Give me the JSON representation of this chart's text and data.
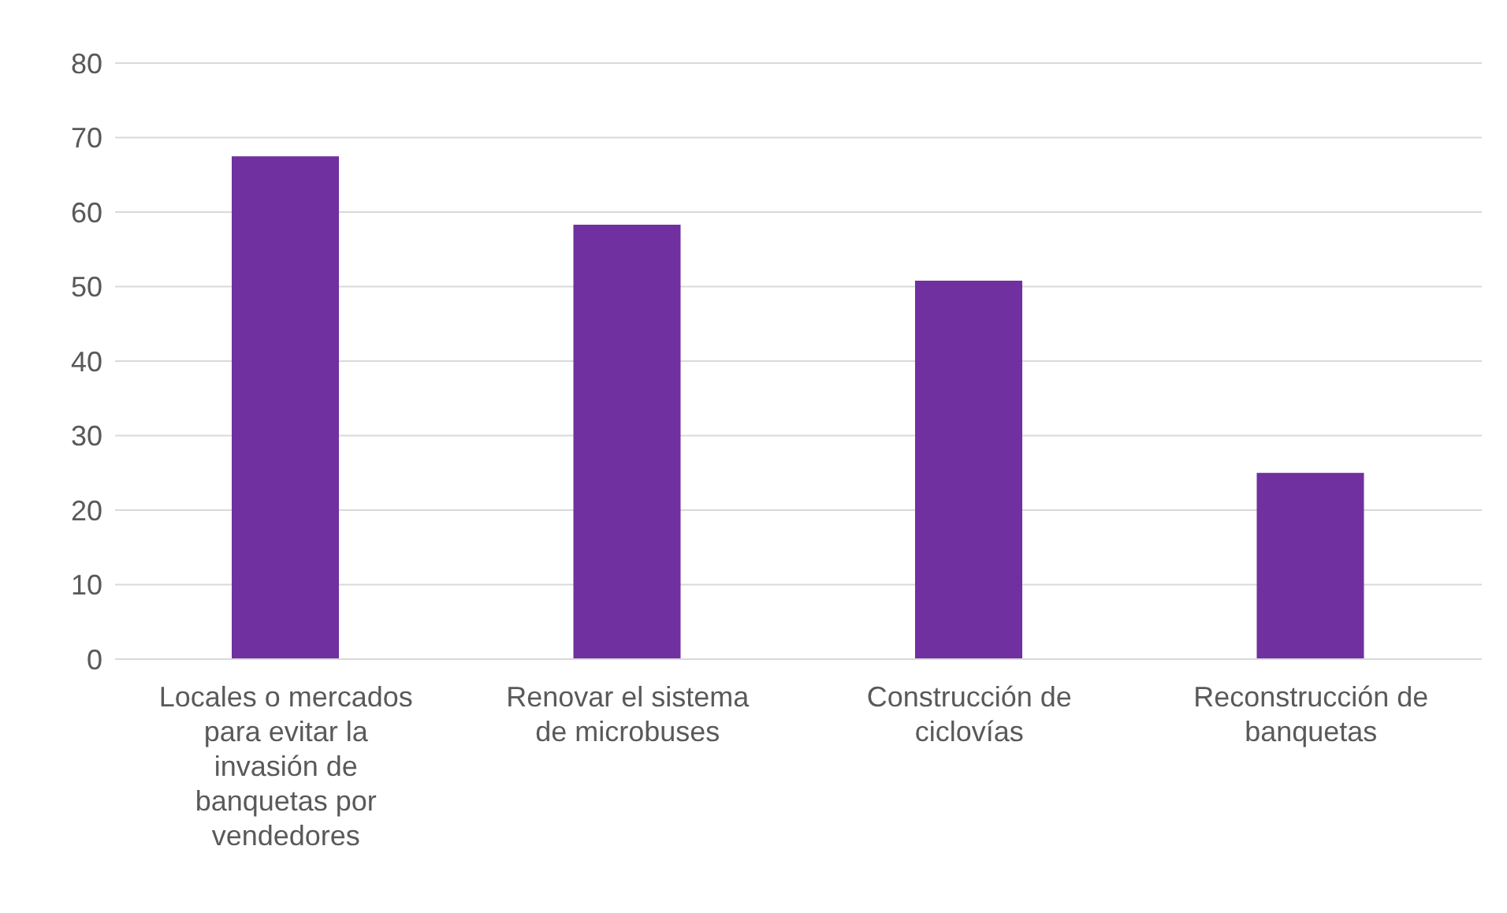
{
  "chart_data": {
    "type": "bar",
    "categories": [
      "Locales o mercados para evitar la invasión de banquetas por vendedores",
      "Renovar el sistema de microbuses",
      "Construcción de ciclovías",
      "Reconstrucción de banquetas"
    ],
    "values": [
      67.5,
      58.3,
      50.8,
      25.0
    ],
    "color": "#7030a0",
    "ylim": [
      0,
      80
    ],
    "yticks": [
      0,
      10,
      20,
      30,
      40,
      50,
      60,
      70,
      80
    ],
    "grid": "y",
    "legend": false
  }
}
